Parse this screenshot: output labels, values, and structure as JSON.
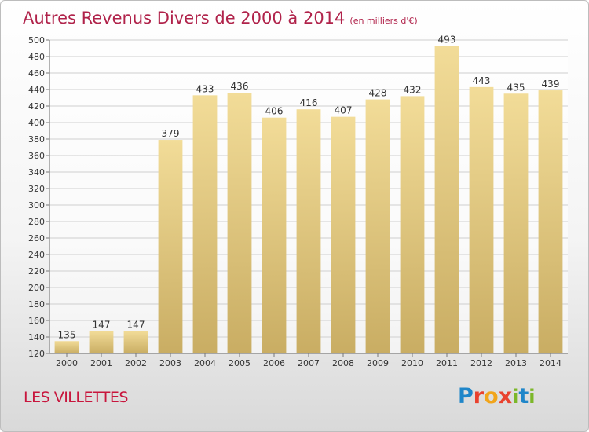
{
  "title": "Autres Revenus Divers de 2000 à 2014",
  "subtitle": "(en milliers d'€)",
  "place": "LES VILLETTES",
  "logo": {
    "letters": [
      "P",
      "r",
      "o",
      "x",
      "i",
      "t",
      "i"
    ]
  },
  "colors": {
    "title": "#b0224a",
    "place": "#c8163d",
    "bar": "#e3cb84",
    "bar_light": "#f2dc98",
    "bar_dark": "#c9ad63"
  },
  "chart_data": {
    "type": "bar",
    "categories": [
      "2000",
      "2001",
      "2002",
      "2003",
      "2004",
      "2005",
      "2006",
      "2007",
      "2008",
      "2009",
      "2010",
      "2011",
      "2012",
      "2013",
      "2014"
    ],
    "values": [
      135,
      147,
      147,
      379,
      433,
      436,
      406,
      416,
      407,
      428,
      432,
      493,
      443,
      435,
      439
    ],
    "ylim": [
      120,
      500
    ],
    "yticks": [
      120,
      140,
      160,
      180,
      200,
      220,
      240,
      260,
      280,
      300,
      320,
      340,
      360,
      380,
      400,
      420,
      440,
      460,
      480,
      500
    ],
    "grid": true
  }
}
